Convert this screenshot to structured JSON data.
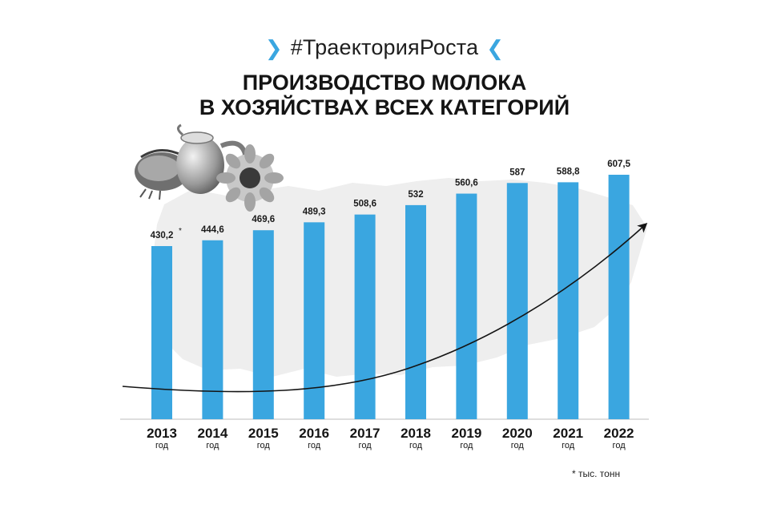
{
  "header": {
    "hashtag": "#ТраекторияРоста",
    "title_line1": "ПРОИЗВОДСТВО МОЛОКА",
    "title_line2": "В ХОЗЯЙСТВАХ ВСЕХ КАТЕГОРИЙ"
  },
  "colors": {
    "accent": "#3aa6e0",
    "text": "#141414",
    "map": "#eeeeee"
  },
  "chart_data": {
    "type": "bar",
    "categories": [
      "2013",
      "2014",
      "2015",
      "2016",
      "2017",
      "2018",
      "2019",
      "2020",
      "2021",
      "2022"
    ],
    "category_suffix": "год",
    "values": [
      430.2,
      444.6,
      469.6,
      489.3,
      508.6,
      532,
      560.6,
      587,
      588.8,
      607.5
    ],
    "value_labels": [
      "430,2",
      "444,6",
      "469,6",
      "489,3",
      "508,6",
      "532",
      "560,6",
      "587",
      "588,8",
      "607,5"
    ],
    "first_label_marker": "*",
    "unit_note": "* тыс. тонн",
    "title": "ПРОИЗВОДСТВО МОЛОКА В ХОЗЯЙСТВАХ ВСЕХ КАТЕГОРИЙ",
    "trend_arrow": true,
    "grid": false,
    "legend": "none"
  }
}
